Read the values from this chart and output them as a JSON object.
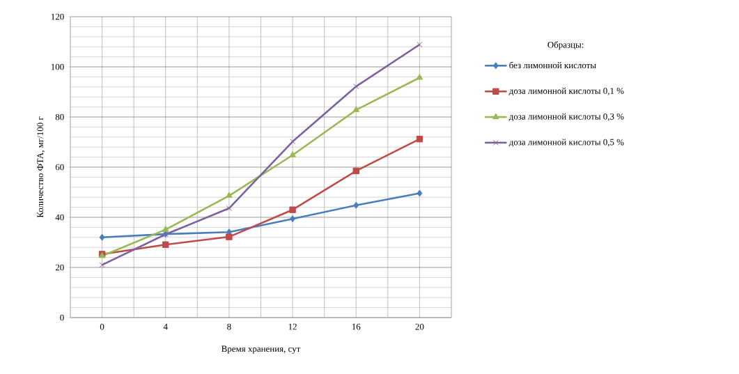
{
  "chart_data": {
    "type": "line",
    "xlabel": "Время хранения, сут",
    "ylabel": "Количество ФТА, мг/100 г",
    "legend_title": "Образцы:",
    "categories": [
      "0",
      "4",
      "8",
      "12",
      "16",
      "20"
    ],
    "series": [
      {
        "name": "без лимонной кислоты",
        "color": "#4a7ebb",
        "marker": "diamond",
        "values": [
          32.0,
          33.3,
          34.1,
          39.4,
          44.8,
          49.6
        ]
      },
      {
        "name": "доза лимонной кислоты 0,1 %",
        "color": "#be4b48",
        "marker": "square",
        "values": [
          25.3,
          29.1,
          32.2,
          43.0,
          58.5,
          71.2
        ]
      },
      {
        "name": "доза лимонной кислоты 0,3 %",
        "color": "#98b954",
        "marker": "triangle",
        "values": [
          24.6,
          35.1,
          48.6,
          64.8,
          82.8,
          95.7
        ]
      },
      {
        "name": "доза лимонной кислоты 0,5 %",
        "color": "#7d60a0",
        "marker": "cross",
        "values": [
          21.0,
          33.2,
          43.6,
          70.2,
          92.2,
          108.9
        ]
      }
    ],
    "ylim": [
      0,
      120
    ],
    "yticks": [
      0,
      20,
      40,
      60,
      80,
      100,
      120
    ],
    "grid": true,
    "legend": "right",
    "line_style": "solid"
  }
}
